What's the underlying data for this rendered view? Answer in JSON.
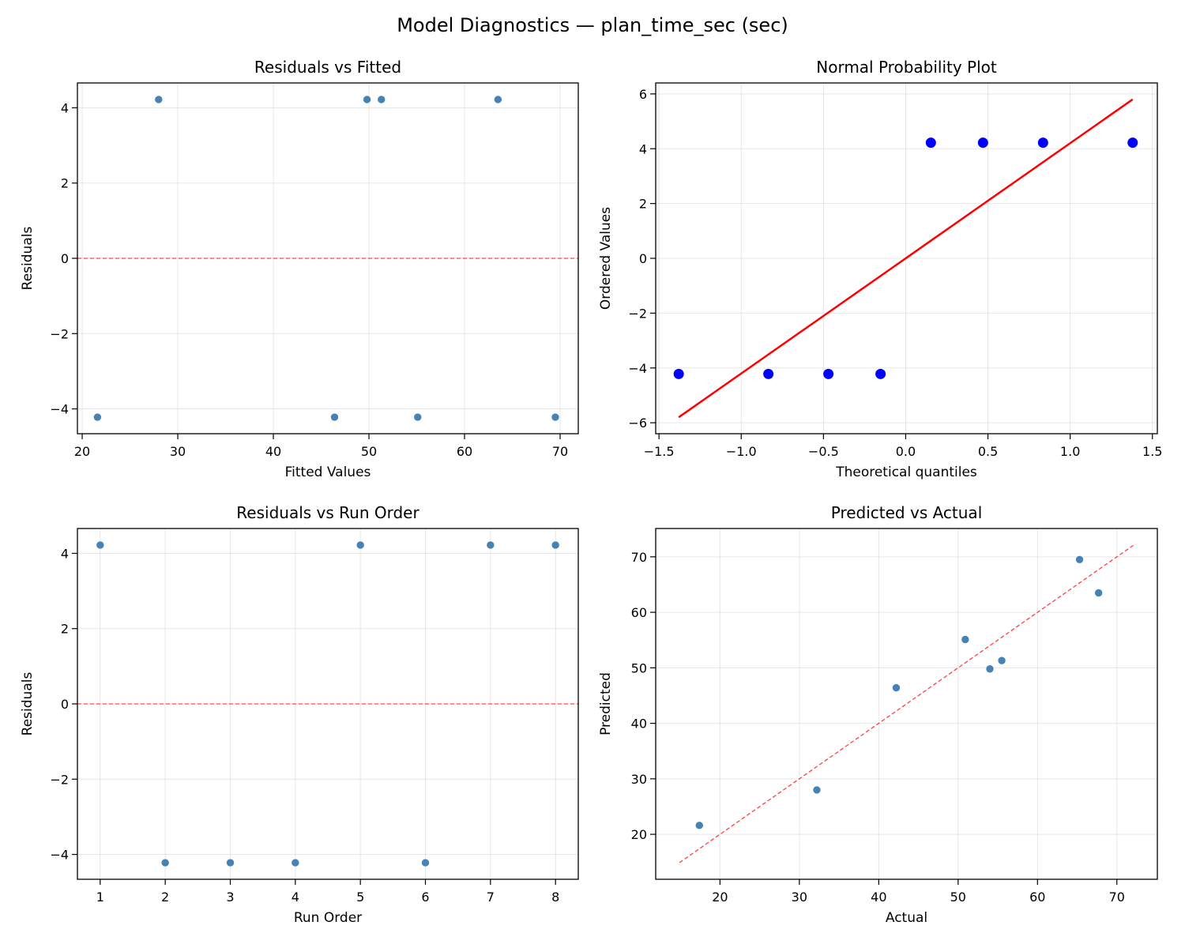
{
  "title": "Model Diagnostics — plan_time_sec (sec)",
  "chart_data": [
    {
      "type": "scatter",
      "title": "Residuals vs Fitted",
      "xlabel": "Fitted Values",
      "ylabel": "Residuals",
      "xlim": [
        19.5,
        71.9
      ],
      "ylim": [
        -4.66,
        4.66
      ],
      "xticks": [
        20,
        30,
        40,
        50,
        60,
        70
      ],
      "yticks": [
        -4,
        -2,
        0,
        2,
        4
      ],
      "grid": true,
      "x": [
        21.6,
        28.0,
        46.4,
        49.8,
        51.3,
        55.1,
        63.5,
        69.5
      ],
      "y": [
        -4.22,
        4.22,
        -4.22,
        4.22,
        4.22,
        -4.22,
        4.22,
        -4.22
      ],
      "hline": 0,
      "point_color": "#4682b4",
      "ref_color": "#ff0000"
    },
    {
      "type": "scatter",
      "title": "Normal Probability Plot",
      "xlabel": "Theoretical quantiles",
      "ylabel": "Ordered Values",
      "xlim": [
        -1.52,
        1.53
      ],
      "ylim": [
        -6.4,
        6.4
      ],
      "xticks": [
        -1.5,
        -1.0,
        -0.5,
        0.0,
        0.5,
        1.0,
        1.5
      ],
      "yticks": [
        -6,
        -4,
        -2,
        0,
        2,
        4,
        6
      ],
      "grid": true,
      "x": [
        -1.38,
        -0.835,
        -0.47,
        -0.153,
        0.153,
        0.47,
        0.835,
        1.38
      ],
      "y": [
        -4.22,
        -4.22,
        -4.22,
        -4.22,
        4.22,
        4.22,
        4.22,
        4.22
      ],
      "fit_line": {
        "x": [
          -1.38,
          1.38
        ],
        "y": [
          -5.8,
          5.8
        ]
      },
      "point_color": "#0000ff",
      "ref_color": "#ff0000"
    },
    {
      "type": "scatter",
      "title": "Residuals vs Run Order",
      "xlabel": "Run Order",
      "ylabel": "Residuals",
      "xlim": [
        0.65,
        8.35
      ],
      "ylim": [
        -4.66,
        4.66
      ],
      "xticks": [
        1,
        2,
        3,
        4,
        5,
        6,
        7,
        8
      ],
      "yticks": [
        -4,
        -2,
        0,
        2,
        4
      ],
      "grid": true,
      "x": [
        1,
        2,
        3,
        4,
        5,
        6,
        7,
        8
      ],
      "y": [
        4.22,
        -4.22,
        -4.22,
        -4.22,
        4.22,
        -4.22,
        4.22,
        4.22
      ],
      "hline": 0,
      "point_color": "#4682b4",
      "ref_color": "#ff0000"
    },
    {
      "type": "scatter",
      "title": "Predicted vs Actual",
      "xlabel": "Actual",
      "ylabel": "Predicted",
      "xlim": [
        11.9,
        75.1
      ],
      "ylim": [
        11.9,
        75.1
      ],
      "xticks": [
        20,
        30,
        40,
        50,
        60,
        70
      ],
      "yticks": [
        20,
        30,
        40,
        50,
        60,
        70
      ],
      "grid": true,
      "x": [
        17.4,
        32.2,
        42.2,
        50.9,
        54.0,
        55.5,
        65.3,
        67.7
      ],
      "y": [
        21.6,
        28.0,
        46.4,
        55.1,
        49.8,
        51.3,
        69.5,
        63.5
      ],
      "ref_line": {
        "x": [
          14.9,
          72.1
        ],
        "y": [
          14.9,
          72.1
        ]
      },
      "point_color": "#4682b4",
      "ref_color": "#ff0000"
    }
  ]
}
